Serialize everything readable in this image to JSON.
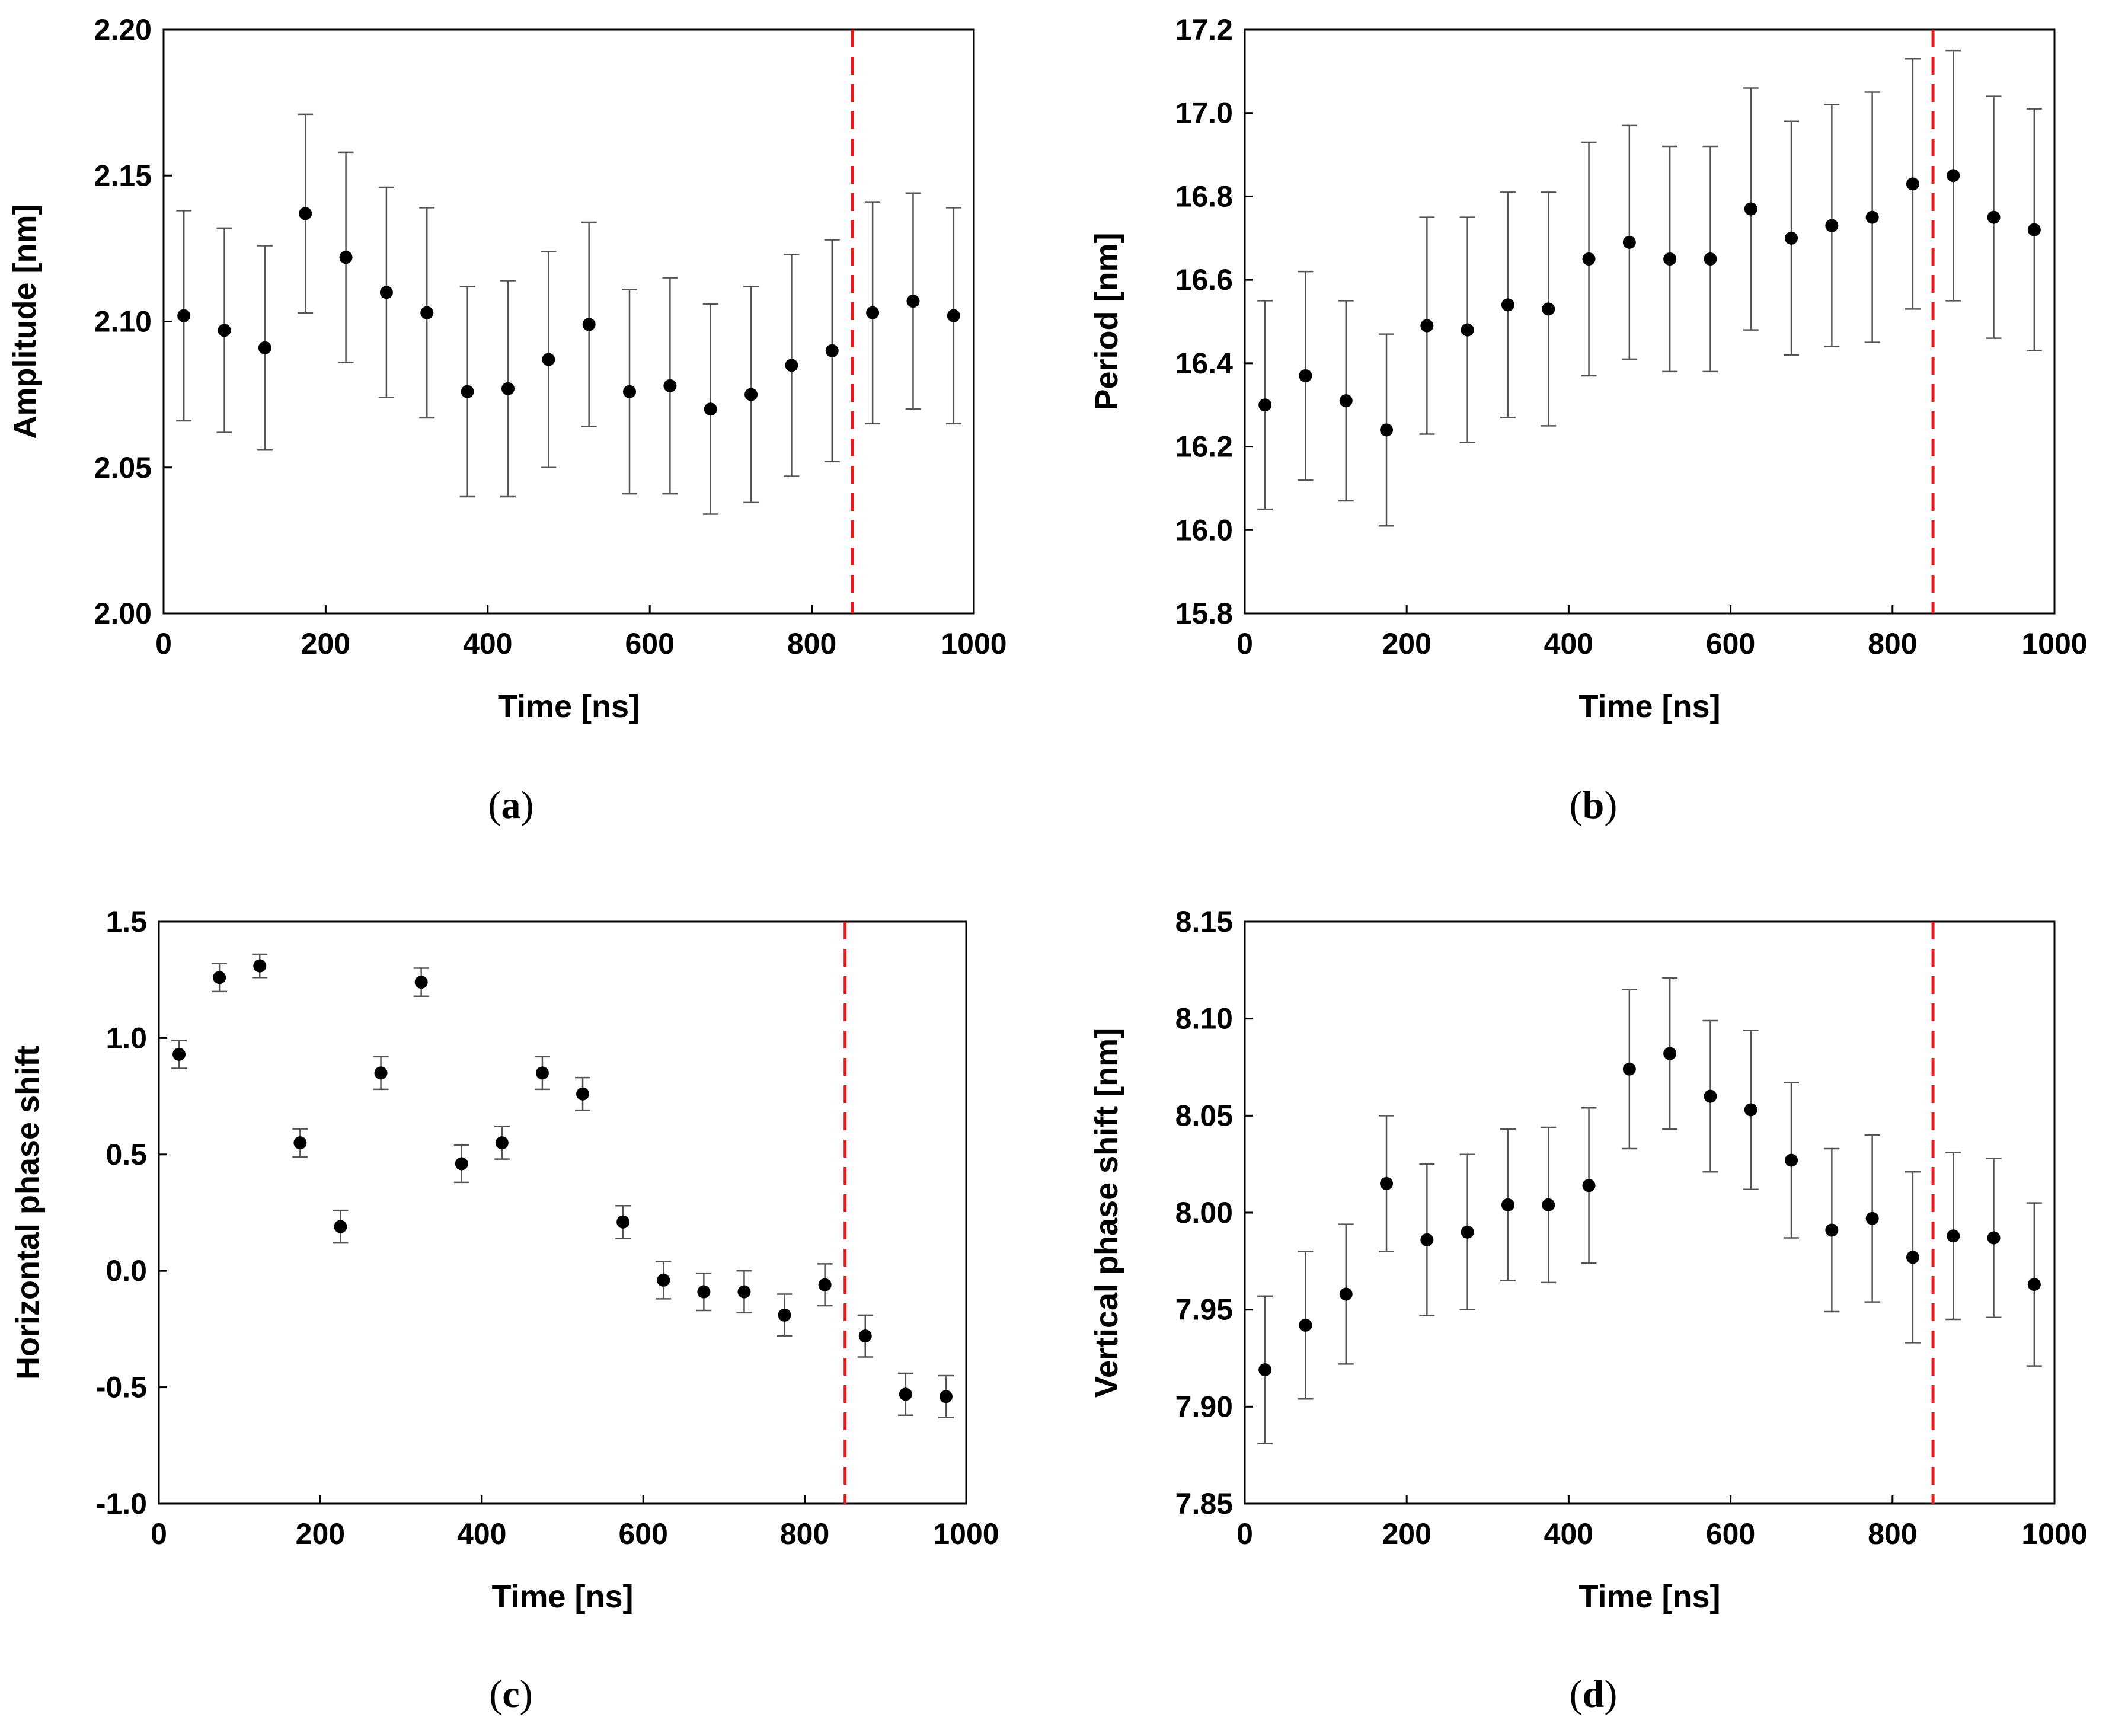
{
  "chart_data": [
    {
      "panel": "a",
      "caption": {
        "open": "(",
        "letter": "a",
        "close": ")"
      },
      "type": "scatter",
      "error_bars": true,
      "xlabel": "Time [ns]",
      "ylabel": "Amplitude [nm]",
      "xlim": [
        0,
        1000
      ],
      "ylim": [
        2.0,
        2.2
      ],
      "xticks": [
        "0",
        "200",
        "400",
        "600",
        "800",
        "1000"
      ],
      "yticks": [
        "2.00",
        "2.05",
        "2.10",
        "2.15",
        "2.20"
      ],
      "reference_line": {
        "x": 850,
        "color": "#e41a1c",
        "style": "dashed"
      },
      "x": [
        25,
        75,
        125,
        175,
        225,
        275,
        325,
        375,
        425,
        475,
        525,
        575,
        625,
        675,
        725,
        775,
        825,
        875,
        925,
        975
      ],
      "y": [
        2.102,
        2.097,
        2.091,
        2.137,
        2.122,
        2.11,
        2.103,
        2.076,
        2.077,
        2.087,
        2.099,
        2.076,
        2.078,
        2.07,
        2.075,
        2.085,
        2.09,
        2.103,
        2.107,
        2.102
      ],
      "y_err": [
        0.036,
        0.035,
        0.035,
        0.034,
        0.036,
        0.036,
        0.036,
        0.036,
        0.037,
        0.037,
        0.035,
        0.035,
        0.037,
        0.036,
        0.037,
        0.038,
        0.038,
        0.038,
        0.037,
        0.037
      ]
    },
    {
      "panel": "b",
      "caption": {
        "open": "(",
        "letter": "b",
        "close": ")"
      },
      "type": "scatter",
      "error_bars": true,
      "xlabel": "Time [ns]",
      "ylabel": "Period [nm]",
      "xlim": [
        0,
        1000
      ],
      "ylim": [
        15.8,
        17.2
      ],
      "xticks": [
        "0",
        "200",
        "400",
        "600",
        "800",
        "1000"
      ],
      "yticks": [
        "15.8",
        "16.0",
        "16.2",
        "16.4",
        "16.6",
        "16.8",
        "17.0",
        "17.2"
      ],
      "reference_line": {
        "x": 850,
        "color": "#e41a1c",
        "style": "dashed"
      },
      "x": [
        25,
        75,
        125,
        175,
        225,
        275,
        325,
        375,
        425,
        475,
        525,
        575,
        625,
        675,
        725,
        775,
        825,
        875,
        925,
        975
      ],
      "y": [
        16.3,
        16.37,
        16.31,
        16.24,
        16.49,
        16.48,
        16.54,
        16.53,
        16.65,
        16.69,
        16.65,
        16.65,
        16.77,
        16.7,
        16.73,
        16.75,
        16.83,
        16.85,
        16.75,
        16.72
      ],
      "y_err": [
        0.25,
        0.25,
        0.24,
        0.23,
        0.26,
        0.27,
        0.27,
        0.28,
        0.28,
        0.28,
        0.27,
        0.27,
        0.29,
        0.28,
        0.29,
        0.3,
        0.3,
        0.3,
        0.29,
        0.29
      ]
    },
    {
      "panel": "c",
      "caption": {
        "open": "(",
        "letter": "c",
        "close": ")"
      },
      "type": "scatter",
      "error_bars": true,
      "xlabel": "Time [ns]",
      "ylabel": "Horizontal phase shift",
      "xlim": [
        0,
        1000
      ],
      "ylim": [
        -1.0,
        1.5
      ],
      "xticks": [
        "0",
        "200",
        "400",
        "600",
        "800",
        "1000"
      ],
      "yticks": [
        "-1.0",
        "-0.5",
        "0.0",
        "0.5",
        "1.0",
        "1.5"
      ],
      "reference_line": {
        "x": 850,
        "color": "#e41a1c",
        "style": "dashed"
      },
      "x": [
        25,
        75,
        125,
        175,
        225,
        275,
        325,
        375,
        425,
        475,
        525,
        575,
        625,
        675,
        725,
        775,
        825,
        875,
        925,
        975
      ],
      "y": [
        0.93,
        1.26,
        1.31,
        0.55,
        0.19,
        0.85,
        1.24,
        0.46,
        0.55,
        0.85,
        0.76,
        0.21,
        -0.04,
        -0.09,
        -0.09,
        -0.19,
        -0.06,
        -0.28,
        -0.53,
        -0.54
      ],
      "y_err": [
        0.06,
        0.06,
        0.05,
        0.06,
        0.07,
        0.07,
        0.06,
        0.08,
        0.07,
        0.07,
        0.07,
        0.07,
        0.08,
        0.08,
        0.09,
        0.09,
        0.09,
        0.09,
        0.09,
        0.09
      ]
    },
    {
      "panel": "d",
      "caption": {
        "open": "(",
        "letter": "d",
        "close": ")"
      },
      "type": "scatter",
      "error_bars": true,
      "xlabel": "Time [ns]",
      "ylabel": "Vertical phase shift [nm]",
      "xlim": [
        0,
        1000
      ],
      "ylim": [
        7.85,
        8.15
      ],
      "xticks": [
        "0",
        "200",
        "400",
        "600",
        "800",
        "1000"
      ],
      "yticks": [
        "7.85",
        "7.90",
        "7.95",
        "8.00",
        "8.05",
        "8.10",
        "8.15"
      ],
      "reference_line": {
        "x": 850,
        "color": "#e41a1c",
        "style": "dashed"
      },
      "x": [
        25,
        75,
        125,
        175,
        225,
        275,
        325,
        375,
        425,
        475,
        525,
        575,
        625,
        675,
        725,
        775,
        825,
        875,
        925,
        975
      ],
      "y": [
        7.919,
        7.942,
        7.958,
        8.015,
        7.986,
        7.99,
        8.004,
        8.004,
        8.014,
        8.074,
        8.082,
        8.06,
        8.053,
        8.027,
        7.991,
        7.997,
        7.977,
        7.988,
        7.987,
        7.963
      ],
      "y_err": [
        0.038,
        0.038,
        0.036,
        0.035,
        0.039,
        0.04,
        0.039,
        0.04,
        0.04,
        0.041,
        0.039,
        0.039,
        0.041,
        0.04,
        0.042,
        0.043,
        0.044,
        0.043,
        0.041,
        0.042
      ]
    }
  ]
}
